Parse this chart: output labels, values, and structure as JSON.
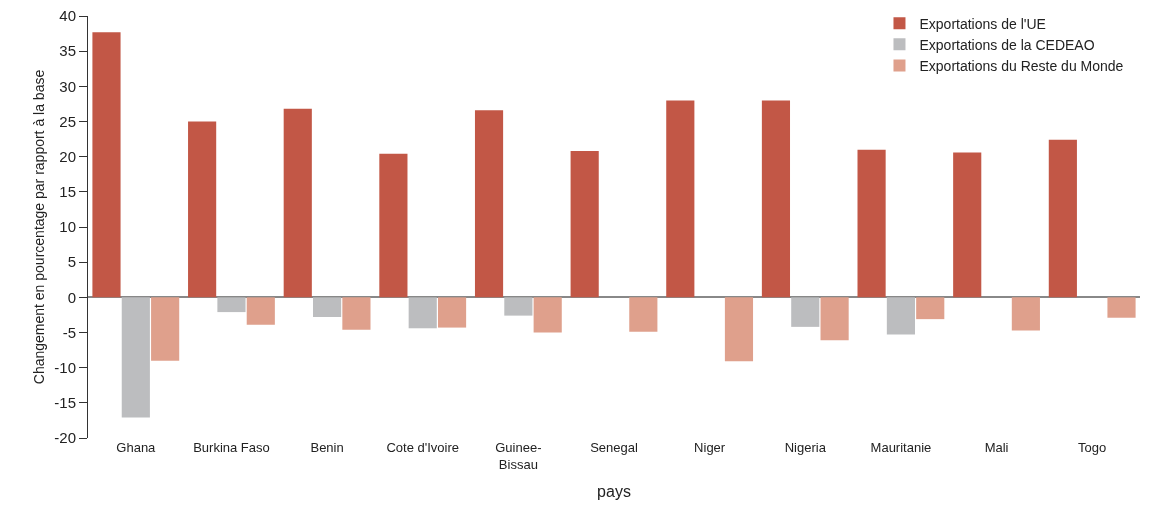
{
  "chart_data": {
    "type": "bar",
    "xlabel": "pays",
    "ylabel": "Changement en pourcentage par rapport à la base",
    "categories": [
      "Ghana",
      "Burkina Faso",
      "Benin",
      "Cote d'Ivoire",
      "Guinee-\nBissau",
      "Senegal",
      "Niger",
      "Nigeria",
      "Mauritanie",
      "Mali",
      "Togo"
    ],
    "series": [
      {
        "name": "Exportations de l'UE",
        "color": "#c25746",
        "values": [
          37.7,
          25.0,
          26.8,
          20.4,
          26.6,
          20.8,
          28.0,
          28.0,
          21.0,
          20.6,
          22.4
        ]
      },
      {
        "name": "Exportations de la CEDEAO",
        "color": "#bcbdbf",
        "values": [
          -17.1,
          -2.1,
          -2.8,
          -4.4,
          -2.6,
          0,
          0,
          -4.2,
          -5.3,
          0,
          0
        ]
      },
      {
        "name": "Exportations du Reste du Monde",
        "color": "#dfa08c",
        "values": [
          -9.0,
          -3.9,
          -4.6,
          -4.3,
          -5.0,
          -4.9,
          -9.1,
          -6.1,
          -3.1,
          -4.7,
          -2.9
        ]
      }
    ],
    "ylim": [
      -20,
      40
    ],
    "yticks": [
      -20,
      -15,
      -10,
      -5,
      0,
      5,
      10,
      15,
      20,
      25,
      30,
      35,
      40
    ],
    "legend": "top right"
  }
}
